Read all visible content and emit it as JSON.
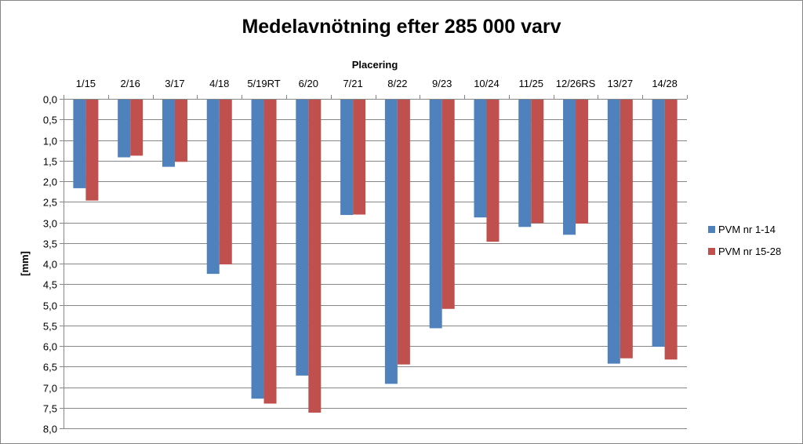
{
  "chart_data": {
    "type": "bar",
    "title": "Medelavnötning efter 285 000 varv",
    "xlabel": "Placering",
    "ylabel": "[mm]",
    "x_axis_position": "top",
    "y_axis_reversed": true,
    "ylim": [
      0,
      8
    ],
    "y_tick_step": 0.5,
    "y_tick_labels": [
      "0,0",
      "0,5",
      "1,0",
      "1,5",
      "2,0",
      "2,5",
      "3,0",
      "3,5",
      "4,0",
      "4,5",
      "5,0",
      "5,5",
      "6,0",
      "6,5",
      "7,0",
      "7,5",
      "8,0"
    ],
    "grid": true,
    "legend_position": "right",
    "categories": [
      "1/15",
      "2/16",
      "3/17",
      "4/18",
      "5/19RT",
      "6/20",
      "7/21",
      "8/22",
      "9/23",
      "10/24",
      "11/25",
      "12/26RS",
      "13/27",
      "14/28"
    ],
    "series": [
      {
        "name": "PVM nr 1-14",
        "color": "#4F81BD",
        "values": [
          2.17,
          1.42,
          1.65,
          4.25,
          7.28,
          6.72,
          2.82,
          6.92,
          5.57,
          2.88,
          3.11,
          3.3,
          6.43,
          6.02
        ]
      },
      {
        "name": "PVM nr 15-28",
        "color": "#C0504D",
        "values": [
          2.47,
          1.38,
          1.53,
          4.02,
          7.4,
          7.62,
          2.81,
          6.45,
          5.1,
          3.47,
          3.02,
          3.03,
          6.3,
          6.33
        ]
      }
    ]
  }
}
